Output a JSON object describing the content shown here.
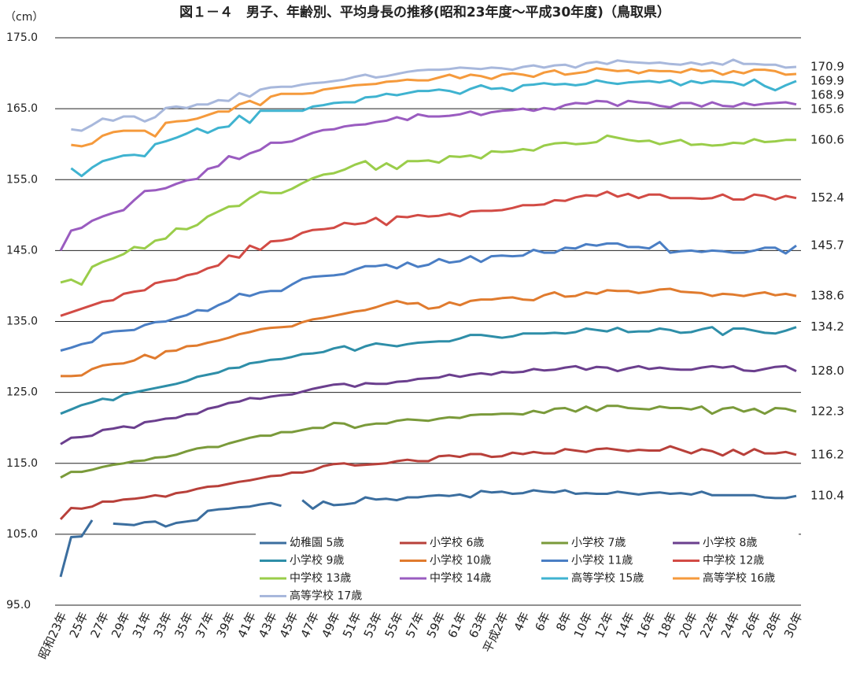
{
  "chart_data": {
    "type": "line",
    "title": "図１－４　男子、年齢別、平均身長の推移(昭和23年度～平成30年度)（鳥取県）",
    "y_label": "（cm）",
    "ylim": [
      95,
      175
    ],
    "yticks": [
      {
        "value": 95,
        "label": "95.0"
      },
      {
        "value": 105,
        "label": "105.0"
      },
      {
        "value": 115,
        "label": "115.0"
      },
      {
        "value": 125,
        "label": "125.0"
      },
      {
        "value": 135,
        "label": "135.0"
      },
      {
        "value": 145,
        "label": "145.0"
      },
      {
        "value": 155,
        "label": "155.0"
      },
      {
        "value": 165,
        "label": "165.0"
      },
      {
        "value": 175,
        "label": "175.0"
      }
    ],
    "grid": true,
    "data_labels": "last",
    "categories": [
      "昭和23年",
      null,
      "25年",
      null,
      "27年",
      null,
      "29年",
      null,
      "31年",
      null,
      "33年",
      null,
      "35年",
      null,
      "37年",
      null,
      "39年",
      null,
      "41年",
      null,
      "43年",
      null,
      "45年",
      null,
      "47年",
      null,
      "49年",
      null,
      "51年",
      null,
      "53年",
      null,
      "55年",
      null,
      "57年",
      null,
      "59年",
      null,
      "61年",
      null,
      "63年",
      null,
      "平成2年",
      null,
      "4年",
      null,
      "6年",
      null,
      "8年",
      null,
      "10年",
      null,
      "12年",
      null,
      "14年",
      null,
      "16年",
      null,
      "18年",
      null,
      "20年",
      null,
      "22年",
      null,
      "24年",
      null,
      "26年",
      null,
      "28年",
      null,
      "30年"
    ],
    "series": [
      {
        "name": "幼稚園 5歳",
        "color": "#3b6e9f",
        "values": [
          99.0,
          104.6,
          104.7,
          107.0,
          null,
          106.5,
          106.4,
          106.3,
          106.7,
          106.8,
          106.1,
          106.6,
          106.8,
          107.0,
          108.3,
          108.5,
          108.6,
          108.8,
          108.9,
          109.2,
          109.4,
          109.0,
          null,
          109.8,
          108.6,
          109.6,
          109.1,
          109.2,
          109.4,
          110.2,
          109.9,
          110.0,
          109.8,
          110.2,
          110.2,
          110.4,
          110.5,
          110.4,
          110.6,
          110.2,
          111.1,
          110.9,
          111.0,
          110.7,
          110.8,
          111.2,
          111.0,
          110.9,
          111.2,
          110.7,
          110.8,
          110.7,
          110.7,
          111.0,
          110.8,
          110.6,
          110.8,
          110.9,
          110.7,
          110.8,
          110.6,
          111.0,
          110.5,
          110.5,
          110.5,
          110.5,
          110.5,
          110.2,
          110.1,
          110.1,
          110.4
        ]
      },
      {
        "name": "小学校 6歳",
        "color": "#b8403a",
        "values": [
          107.1,
          108.7,
          108.6,
          108.9,
          109.6,
          109.6,
          109.9,
          110.0,
          110.2,
          110.5,
          110.3,
          110.8,
          111.0,
          111.4,
          111.7,
          111.8,
          112.1,
          112.4,
          112.6,
          112.9,
          113.2,
          113.3,
          113.7,
          113.7,
          114.0,
          114.6,
          114.9,
          115.0,
          114.7,
          114.8,
          114.9,
          115.0,
          115.3,
          115.5,
          115.3,
          115.3,
          116.0,
          116.1,
          115.9,
          116.3,
          116.3,
          115.9,
          116.0,
          116.5,
          116.3,
          116.6,
          116.4,
          116.4,
          117.0,
          116.8,
          116.6,
          117.0,
          117.1,
          116.9,
          116.7,
          116.9,
          116.8,
          116.8,
          117.4,
          116.9,
          116.4,
          117.0,
          116.7,
          116.1,
          116.9,
          116.2,
          117.0,
          116.4,
          116.4,
          116.6,
          116.2
        ]
      },
      {
        "name": "小学校 7歳",
        "color": "#7a9a3a",
        "values": [
          113.0,
          113.8,
          113.8,
          114.1,
          114.5,
          114.8,
          115.0,
          115.3,
          115.4,
          115.8,
          115.9,
          116.2,
          116.7,
          117.1,
          117.3,
          117.3,
          117.8,
          118.2,
          118.6,
          118.9,
          118.9,
          119.4,
          119.4,
          119.7,
          120.0,
          120.0,
          120.7,
          120.6,
          120.0,
          120.4,
          120.6,
          120.6,
          121.0,
          121.2,
          121.1,
          121.0,
          121.3,
          121.5,
          121.4,
          121.8,
          121.9,
          121.9,
          122.0,
          122.0,
          121.9,
          122.4,
          122.1,
          122.7,
          122.8,
          122.3,
          123.0,
          122.4,
          123.1,
          123.1,
          122.8,
          122.7,
          122.6,
          123.0,
          122.8,
          122.8,
          122.6,
          123.0,
          122.0,
          122.7,
          122.9,
          122.3,
          122.7,
          122.0,
          122.8,
          122.7,
          122.3
        ]
      },
      {
        "name": "小学校 8歳",
        "color": "#6b3f8e",
        "values": [
          117.7,
          118.6,
          118.7,
          118.9,
          119.7,
          119.9,
          120.2,
          120.0,
          120.8,
          121.0,
          121.3,
          121.4,
          121.9,
          122.0,
          122.7,
          123.0,
          123.5,
          123.7,
          124.2,
          124.1,
          124.4,
          124.6,
          124.7,
          125.1,
          125.5,
          125.8,
          126.1,
          126.2,
          125.8,
          126.3,
          126.2,
          126.2,
          126.5,
          126.6,
          126.9,
          127.0,
          127.1,
          127.5,
          127.2,
          127.5,
          127.7,
          127.5,
          127.9,
          127.8,
          127.9,
          128.3,
          128.1,
          128.2,
          128.5,
          128.7,
          128.2,
          128.6,
          128.5,
          128.0,
          128.4,
          128.7,
          128.3,
          128.5,
          128.3,
          128.2,
          128.2,
          128.5,
          128.7,
          128.5,
          128.7,
          128.1,
          128.0,
          128.3,
          128.6,
          128.7,
          128.0
        ],
        "value_labels": [
          null,
          null,
          null,
          null,
          null,
          null,
          null,
          null,
          null,
          null,
          null,
          null,
          null,
          null,
          null,
          null,
          null,
          null,
          null,
          null,
          null,
          null,
          null,
          null,
          null,
          null,
          null,
          null,
          null,
          null,
          null,
          null,
          null,
          null,
          null,
          null,
          null,
          null,
          null,
          null,
          null,
          null,
          null,
          null,
          null,
          null,
          null,
          null,
          null,
          null,
          null,
          null,
          null,
          null,
          null,
          null,
          null,
          null,
          null,
          null,
          null,
          null,
          null,
          null,
          null,
          null,
          null,
          null,
          null,
          null,
          "128.0"
        ]
      },
      {
        "name": "小学校 9歳",
        "color": "#2e8ea8",
        "values": [
          122.0,
          122.6,
          123.2,
          123.6,
          124.1,
          123.9,
          124.7,
          125.0,
          125.3,
          125.6,
          125.9,
          126.2,
          126.6,
          127.2,
          127.5,
          127.8,
          128.4,
          128.5,
          129.1,
          129.3,
          129.6,
          129.7,
          130.0,
          130.4,
          130.5,
          130.7,
          131.2,
          131.5,
          130.9,
          131.5,
          131.9,
          131.7,
          131.5,
          131.8,
          132.0,
          132.1,
          132.2,
          132.2,
          132.6,
          133.1,
          133.1,
          132.9,
          132.7,
          132.9,
          133.3,
          133.3,
          133.3,
          133.4,
          133.3,
          133.5,
          134.0,
          133.8,
          133.6,
          134.1,
          133.5,
          133.6,
          133.6,
          134.0,
          133.8,
          133.4,
          133.5,
          133.9,
          134.2,
          133.1,
          134.0,
          134.0,
          133.7,
          133.4,
          133.3,
          133.7,
          134.2
        ]
      },
      {
        "name": "小学校 10歳",
        "color": "#e07b2e",
        "values": [
          127.3,
          127.3,
          127.4,
          128.3,
          128.8,
          129.0,
          129.1,
          129.5,
          130.3,
          129.8,
          130.8,
          130.9,
          131.5,
          131.6,
          132.0,
          132.3,
          132.7,
          133.2,
          133.5,
          133.9,
          134.1,
          134.2,
          134.3,
          134.9,
          135.3,
          135.5,
          135.8,
          136.1,
          136.4,
          136.6,
          137.0,
          137.5,
          137.9,
          137.5,
          137.6,
          136.8,
          137.0,
          137.7,
          137.3,
          137.9,
          138.1,
          138.1,
          138.3,
          138.4,
          138.1,
          138.0,
          138.7,
          139.1,
          138.5,
          138.6,
          139.1,
          138.9,
          139.4,
          139.3,
          139.3,
          139.0,
          139.2,
          139.5,
          139.6,
          139.2,
          139.1,
          139.0,
          138.6,
          138.9,
          138.8,
          138.6,
          138.9,
          139.1,
          138.7,
          138.9,
          138.6
        ]
      },
      {
        "name": "小学校 11歳",
        "color": "#4a7ec4",
        "values": [
          130.9,
          131.3,
          131.8,
          132.1,
          133.3,
          133.6,
          133.7,
          133.8,
          134.5,
          134.9,
          135.0,
          135.5,
          135.9,
          136.6,
          136.5,
          137.3,
          137.9,
          138.9,
          138.6,
          139.1,
          139.3,
          139.3,
          140.2,
          141.0,
          141.3,
          141.4,
          141.5,
          141.7,
          142.3,
          142.8,
          142.8,
          143.0,
          142.5,
          143.3,
          142.7,
          143.0,
          143.8,
          143.3,
          143.5,
          144.2,
          143.4,
          144.2,
          144.3,
          144.2,
          144.3,
          145.1,
          144.7,
          144.7,
          145.4,
          145.3,
          145.9,
          145.7,
          146.0,
          146.0,
          145.5,
          145.5,
          145.3,
          146.2,
          144.7,
          144.9,
          145.0,
          144.8,
          145.0,
          144.9,
          144.7,
          144.7,
          145.0,
          145.4,
          145.4,
          144.6,
          145.7
        ]
      },
      {
        "name": "中学校 12歳",
        "color": "#d24b45",
        "values": [
          135.8,
          136.3,
          136.8,
          137.3,
          137.8,
          138.0,
          138.9,
          139.2,
          139.4,
          140.4,
          140.7,
          140.9,
          141.5,
          141.8,
          142.5,
          142.9,
          144.3,
          144.0,
          145.7,
          145.1,
          146.3,
          146.4,
          146.7,
          147.5,
          147.9,
          148.0,
          148.2,
          148.9,
          148.7,
          148.9,
          149.6,
          148.6,
          149.8,
          149.7,
          150.0,
          149.8,
          149.9,
          150.2,
          149.8,
          150.5,
          150.6,
          150.6,
          150.7,
          151.0,
          151.4,
          151.4,
          151.5,
          152.1,
          152.0,
          152.5,
          152.8,
          152.7,
          153.3,
          152.6,
          153.0,
          152.4,
          152.9,
          152.9,
          152.4,
          152.4,
          152.4,
          152.3,
          152.4,
          152.9,
          152.2,
          152.2,
          152.9,
          152.7,
          152.2,
          152.7,
          152.4
        ]
      },
      {
        "name": "中学校 13歳",
        "color": "#9acd4a",
        "values": [
          140.5,
          140.9,
          140.2,
          142.7,
          143.4,
          143.9,
          144.5,
          145.5,
          145.3,
          146.4,
          146.7,
          148.1,
          148.0,
          148.6,
          149.8,
          150.5,
          151.2,
          151.3,
          152.4,
          153.3,
          153.1,
          153.1,
          153.7,
          154.5,
          155.2,
          155.7,
          155.9,
          156.4,
          157.1,
          157.6,
          156.4,
          157.3,
          156.5,
          157.6,
          157.6,
          157.7,
          157.4,
          158.3,
          158.2,
          158.4,
          158.0,
          159.0,
          158.9,
          159.0,
          159.3,
          159.1,
          159.8,
          160.1,
          160.2,
          160.0,
          160.1,
          160.3,
          161.2,
          160.9,
          160.6,
          160.4,
          160.5,
          160.0,
          160.3,
          160.6,
          159.9,
          160.0,
          159.8,
          159.9,
          160.2,
          160.1,
          160.7,
          160.3,
          160.4,
          160.6,
          160.6
        ]
      },
      {
        "name": "中学校 14歳",
        "color": "#9a5cc0",
        "values": [
          145.0,
          147.8,
          148.2,
          149.2,
          149.8,
          150.3,
          150.7,
          152.1,
          153.4,
          153.5,
          153.8,
          154.4,
          154.9,
          155.1,
          156.5,
          156.9,
          158.3,
          157.9,
          158.7,
          159.2,
          160.2,
          160.2,
          160.4,
          161.0,
          161.6,
          162.0,
          162.1,
          162.5,
          162.7,
          162.8,
          163.1,
          163.3,
          163.8,
          163.4,
          164.2,
          163.9,
          163.9,
          164.0,
          164.2,
          164.6,
          164.1,
          164.5,
          164.7,
          164.8,
          165.0,
          164.7,
          165.1,
          164.9,
          165.5,
          165.8,
          165.7,
          166.1,
          166.0,
          165.4,
          166.1,
          165.9,
          165.8,
          165.4,
          165.2,
          165.8,
          165.8,
          165.3,
          165.9,
          165.4,
          165.3,
          165.8,
          165.5,
          165.7,
          165.8,
          165.9,
          165.6
        ]
      },
      {
        "name": "高等学校 15歳",
        "color": "#3fb3d0",
        "values": [
          null,
          156.6,
          155.5,
          156.7,
          157.6,
          158.0,
          158.4,
          158.5,
          158.3,
          160.0,
          160.4,
          160.9,
          161.5,
          162.2,
          161.6,
          162.3,
          162.5,
          164.0,
          163.0,
          164.7,
          164.7,
          164.7,
          164.7,
          164.7,
          165.3,
          165.5,
          165.8,
          165.9,
          165.9,
          166.6,
          166.7,
          167.1,
          166.9,
          167.2,
          167.5,
          167.5,
          167.7,
          167.5,
          167.1,
          167.8,
          168.3,
          167.8,
          167.9,
          167.5,
          168.3,
          168.4,
          168.6,
          168.4,
          168.5,
          168.3,
          168.5,
          169.0,
          168.7,
          168.5,
          168.7,
          168.8,
          168.9,
          168.7,
          169.0,
          168.3,
          168.9,
          168.6,
          168.9,
          168.8,
          168.7,
          168.3,
          169.1,
          168.2,
          167.6,
          168.3,
          168.9
        ]
      },
      {
        "name": "高等学校 16歳",
        "color": "#f59a3c",
        "values": [
          null,
          159.9,
          159.7,
          160.1,
          161.2,
          161.7,
          161.9,
          161.9,
          161.9,
          161.1,
          163.0,
          163.2,
          163.3,
          163.6,
          164.1,
          164.6,
          164.6,
          165.6,
          166.1,
          165.5,
          166.7,
          167.1,
          167.1,
          167.1,
          167.2,
          167.7,
          167.9,
          168.1,
          168.3,
          168.4,
          168.5,
          168.8,
          168.9,
          169.1,
          169.0,
          169.0,
          169.4,
          169.8,
          169.3,
          169.8,
          169.6,
          169.2,
          169.8,
          170.0,
          169.8,
          169.5,
          170.1,
          170.4,
          169.8,
          170.0,
          170.2,
          170.7,
          170.5,
          170.3,
          170.4,
          170.0,
          170.4,
          170.3,
          170.3,
          170.1,
          170.6,
          170.3,
          170.4,
          169.8,
          170.3,
          170.0,
          170.5,
          170.5,
          170.3,
          169.8,
          169.9
        ]
      },
      {
        "name": "高等学校 17歳",
        "color": "#a8b8dc",
        "values": [
          null,
          162.1,
          161.9,
          162.7,
          163.6,
          163.3,
          163.9,
          163.9,
          163.2,
          163.8,
          165.1,
          165.3,
          165.1,
          165.6,
          165.6,
          166.2,
          166.1,
          167.2,
          166.7,
          167.7,
          168.0,
          168.1,
          168.1,
          168.4,
          168.6,
          168.7,
          168.9,
          169.1,
          169.5,
          169.8,
          169.4,
          169.6,
          169.9,
          170.2,
          170.4,
          170.5,
          170.5,
          170.6,
          170.8,
          170.7,
          170.6,
          170.8,
          170.7,
          170.5,
          170.9,
          171.1,
          170.8,
          171.1,
          171.2,
          170.8,
          171.4,
          171.6,
          171.3,
          171.8,
          171.6,
          171.5,
          171.4,
          171.5,
          171.3,
          171.2,
          171.5,
          171.2,
          171.5,
          171.2,
          171.9,
          171.3,
          171.3,
          171.2,
          171.2,
          170.8,
          170.9
        ]
      }
    ]
  }
}
